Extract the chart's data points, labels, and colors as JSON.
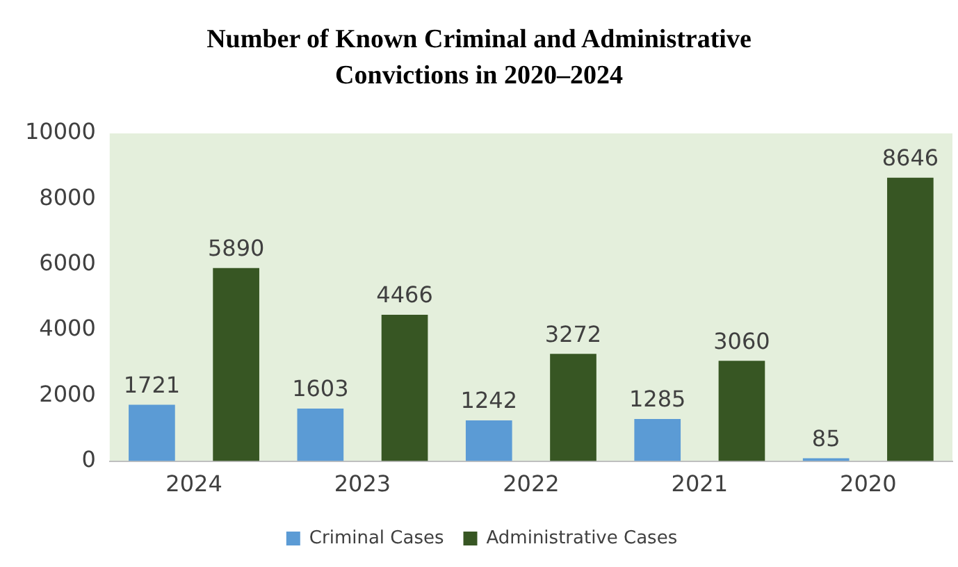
{
  "chart_data": {
    "type": "bar",
    "title": "Number of Known Criminal and Administrative Convictions in 2020–2024",
    "categories": [
      "2024",
      "2023",
      "2022",
      "2021",
      "2020"
    ],
    "series": [
      {
        "name": "Criminal Cases",
        "color": "#5b9bd5",
        "values": [
          1721,
          1603,
          1242,
          1285,
          85
        ]
      },
      {
        "name": "Administrative Cases",
        "color": "#375623",
        "values": [
          5890,
          4466,
          3272,
          3060,
          8646
        ]
      }
    ],
    "ylim": [
      0,
      10000
    ],
    "yticks": [
      0,
      2000,
      4000,
      6000,
      8000,
      10000
    ],
    "grid": false,
    "legend": "bottom",
    "data_labels": true
  }
}
